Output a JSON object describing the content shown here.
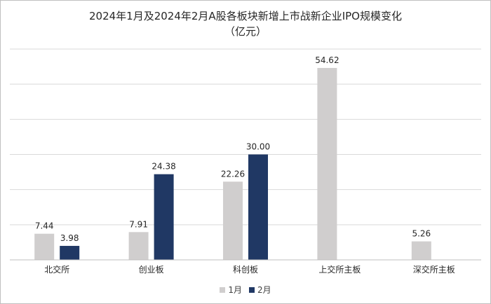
{
  "colors": {
    "series_1": "#d0cece",
    "series_2": "#203864",
    "grid": "#d9d9d9",
    "axis": "#bfbfbf",
    "text": "#262626"
  },
  "chart_data": {
    "type": "bar",
    "title": "2024年1月及2024年2月A股各板块新增上市战新企业IPO规模变化",
    "subtitle": "（亿元）",
    "categories": [
      "北交所",
      "创业板",
      "科创板",
      "上交所主板",
      "深交所主板"
    ],
    "series": [
      {
        "name": "1月",
        "values": [
          7.44,
          7.91,
          22.26,
          54.62,
          5.26
        ]
      },
      {
        "name": "2月",
        "values": [
          3.98,
          24.38,
          30.0,
          null,
          null
        ]
      }
    ],
    "data_labels": [
      [
        "7.44",
        "7.91",
        "22.26",
        "54.62",
        "5.26"
      ],
      [
        "3.98",
        "24.38",
        "30.00",
        "",
        ""
      ]
    ],
    "ylim": [
      0,
      60
    ],
    "grid": true,
    "legend": "bottom"
  }
}
